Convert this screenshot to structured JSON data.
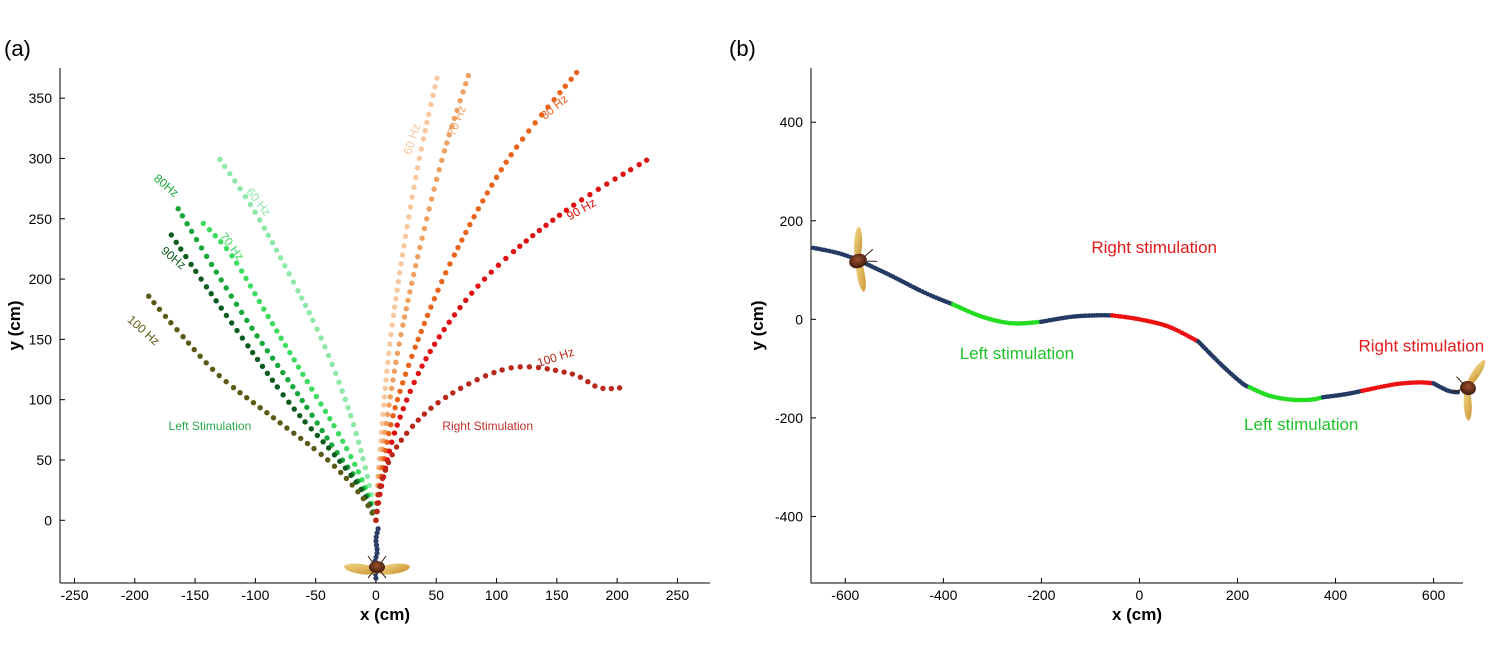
{
  "figure": {
    "panel_a_label": "(a)",
    "panel_b_label": "(b)"
  },
  "chart_data": [
    {
      "type": "scatter",
      "panel": "(a)",
      "title": "",
      "xlabel": "x (cm)",
      "ylabel": "y (cm)",
      "xlim": [
        -262,
        277
      ],
      "ylim": [
        -52,
        375
      ],
      "xticks": [
        -250,
        -200,
        -150,
        -100,
        -50,
        0,
        50,
        100,
        150,
        200,
        250
      ],
      "yticks": [
        0,
        50,
        100,
        150,
        200,
        250,
        300,
        350
      ],
      "start_segment": {
        "color": "#2b3d66",
        "points": [
          [
            0,
            -48
          ],
          [
            -1,
            -36
          ],
          [
            1,
            -26
          ],
          [
            0,
            -16
          ],
          [
            2,
            -6
          ]
        ]
      },
      "series": [
        {
          "name": "60 Hz",
          "side": "left",
          "color": "#8ee8a8",
          "label": "60 Hz",
          "label_pos": [
            -100,
            262
          ],
          "label_angle": 52,
          "points": [
            [
              0,
              0
            ],
            [
              -8,
              40
            ],
            [
              -22,
              90
            ],
            [
              -45,
              150
            ],
            [
              -75,
              210
            ],
            [
              -103,
              260
            ],
            [
              -130,
              300
            ]
          ]
        },
        {
          "name": "70 Hz",
          "side": "left",
          "color": "#3ddc5f",
          "label": "70 Hz",
          "label_pos": [
            -122,
            225
          ],
          "label_angle": 52,
          "points": [
            [
              0,
              0
            ],
            [
              -10,
              30
            ],
            [
              -30,
              70
            ],
            [
              -60,
              120
            ],
            [
              -90,
              170
            ],
            [
              -120,
              220
            ],
            [
              -145,
              248
            ]
          ]
        },
        {
          "name": "80Hz",
          "side": "left",
          "color": "#18a83a",
          "label": "80Hz",
          "label_pos": [
            -176,
            275
          ],
          "label_angle": 40,
          "points": [
            [
              0,
              0
            ],
            [
              -10,
              25
            ],
            [
              -35,
              60
            ],
            [
              -65,
              105
            ],
            [
              -100,
              155
            ],
            [
              -135,
              210
            ],
            [
              -165,
              260
            ]
          ]
        },
        {
          "name": "90Hz",
          "side": "left",
          "color": "#0d5c1f",
          "label": "90Hz",
          "label_pos": [
            -170,
            215
          ],
          "label_angle": 40,
          "points": [
            [
              0,
              0
            ],
            [
              -12,
              25
            ],
            [
              -35,
              55
            ],
            [
              -70,
              95
            ],
            [
              -110,
              150
            ],
            [
              -145,
              200
            ],
            [
              -172,
              240
            ]
          ]
        },
        {
          "name": "100 Hz",
          "side": "left",
          "color": "#5b5a14",
          "label": "100 Hz",
          "label_pos": [
            -195,
            155
          ],
          "label_angle": 42,
          "points": [
            [
              0,
              0
            ],
            [
              -12,
              20
            ],
            [
              -40,
              50
            ],
            [
              -85,
              85
            ],
            [
              -130,
              120
            ],
            [
              -165,
              158
            ],
            [
              -192,
              190
            ]
          ]
        },
        {
          "name": "60 Hz",
          "side": "right",
          "color": "#f8c8a0",
          "label": "60 Hz",
          "label_pos": [
            33,
            315
          ],
          "label_angle": -72,
          "points": [
            [
              0,
              0
            ],
            [
              2,
              40
            ],
            [
              6,
              90
            ],
            [
              12,
              150
            ],
            [
              22,
              220
            ],
            [
              36,
              300
            ],
            [
              52,
              373
            ]
          ]
        },
        {
          "name": "70 Hz",
          "side": "right",
          "color": "#f0a060",
          "label": "70 Hz",
          "label_pos": [
            70,
            330
          ],
          "label_angle": -68,
          "points": [
            [
              0,
              0
            ],
            [
              3,
              40
            ],
            [
              10,
              90
            ],
            [
              20,
              150
            ],
            [
              35,
              220
            ],
            [
              55,
              300
            ],
            [
              78,
              373
            ]
          ]
        },
        {
          "name": "80 Hz",
          "side": "right",
          "color": "#e8641a",
          "label": "80 Hz",
          "label_pos": [
            150,
            340
          ],
          "label_angle": -40,
          "points": [
            [
              0,
              0
            ],
            [
              5,
              40
            ],
            [
              15,
              90
            ],
            [
              35,
              150
            ],
            [
              65,
              220
            ],
            [
              110,
              300
            ],
            [
              167,
              372
            ]
          ]
        },
        {
          "name": "90 Hz",
          "side": "right",
          "color": "#e01010",
          "label": "90 Hz",
          "label_pos": [
            172,
            255
          ],
          "label_angle": -30,
          "points": [
            [
              0,
              0
            ],
            [
              5,
              30
            ],
            [
              18,
              80
            ],
            [
              45,
              140
            ],
            [
              90,
              200
            ],
            [
              155,
              255
            ],
            [
              230,
              302
            ]
          ]
        },
        {
          "name": "100 Hz",
          "side": "right",
          "color": "#b82818",
          "label": "100 Hz",
          "label_pos": [
            150,
            132
          ],
          "label_angle": -18,
          "points": [
            [
              0,
              0
            ],
            [
              4,
              30
            ],
            [
              20,
              65
            ],
            [
              55,
              100
            ],
            [
              110,
              126
            ],
            [
              160,
              122
            ],
            [
              185,
              110
            ],
            [
              205,
              110
            ]
          ]
        }
      ],
      "annotations": [
        {
          "text": "Left Stimulation",
          "x": -172,
          "y": 75,
          "color": "#2aa84a"
        },
        {
          "text": "Right Stimulation",
          "x": 55,
          "y": 75,
          "color": "#c0302a"
        }
      ]
    },
    {
      "type": "line",
      "panel": "(b)",
      "title": "",
      "xlabel": "x (cm)",
      "ylabel": "y (cm)",
      "xlim": [
        -670,
        660
      ],
      "ylim": [
        -535,
        510
      ],
      "xticks": [
        -600,
        -400,
        -200,
        0,
        200,
        400,
        600
      ],
      "yticks": [
        -400,
        -200,
        0,
        200,
        400
      ],
      "segments": [
        {
          "stimulus": "none",
          "color": "#243a63",
          "points": [
            [
              -665,
              145
            ],
            [
              -600,
              130
            ],
            [
              -520,
              95
            ],
            [
              -440,
              55
            ],
            [
              -380,
              30
            ]
          ]
        },
        {
          "stimulus": "left",
          "color": "#22dd22",
          "points": [
            [
              -380,
              30
            ],
            [
              -320,
              5
            ],
            [
              -260,
              -8
            ],
            [
              -200,
              -5
            ]
          ]
        },
        {
          "stimulus": "none",
          "color": "#243a63",
          "points": [
            [
              -200,
              -5
            ],
            [
              -140,
              5
            ],
            [
              -90,
              8
            ],
            [
              -55,
              8
            ]
          ]
        },
        {
          "stimulus": "right",
          "color": "#ee1111",
          "points": [
            [
              -55,
              8
            ],
            [
              0,
              0
            ],
            [
              60,
              -15
            ],
            [
              120,
              -45
            ]
          ]
        },
        {
          "stimulus": "none",
          "color": "#243a63",
          "points": [
            [
              120,
              -45
            ],
            [
              170,
              -95
            ],
            [
              210,
              -130
            ],
            [
              225,
              -138
            ]
          ]
        },
        {
          "stimulus": "left",
          "color": "#22dd22",
          "points": [
            [
              225,
              -138
            ],
            [
              265,
              -155
            ],
            [
              310,
              -163
            ],
            [
              350,
              -163
            ],
            [
              375,
              -158
            ]
          ]
        },
        {
          "stimulus": "none",
          "color": "#243a63",
          "points": [
            [
              375,
              -158
            ],
            [
              420,
              -152
            ],
            [
              455,
              -145
            ]
          ]
        },
        {
          "stimulus": "right",
          "color": "#ee1111",
          "points": [
            [
              455,
              -145
            ],
            [
              520,
              -132
            ],
            [
              570,
              -128
            ],
            [
              600,
              -130
            ]
          ]
        },
        {
          "stimulus": "none",
          "color": "#243a63",
          "points": [
            [
              600,
              -130
            ],
            [
              630,
              -145
            ],
            [
              650,
              -148
            ]
          ]
        }
      ],
      "annotations": [
        {
          "text": "Right stimulation",
          "x": 30,
          "y": 135,
          "color": "#e41a1a"
        },
        {
          "text": "Left stimulation",
          "x": -250,
          "y": -80,
          "color": "#1fc22a"
        },
        {
          "text": "Left stimulation",
          "x": 330,
          "y": -225,
          "color": "#1fc22a"
        },
        {
          "text": "Right stimulation",
          "x": 575,
          "y": -65,
          "color": "#e41a1a"
        }
      ]
    }
  ]
}
